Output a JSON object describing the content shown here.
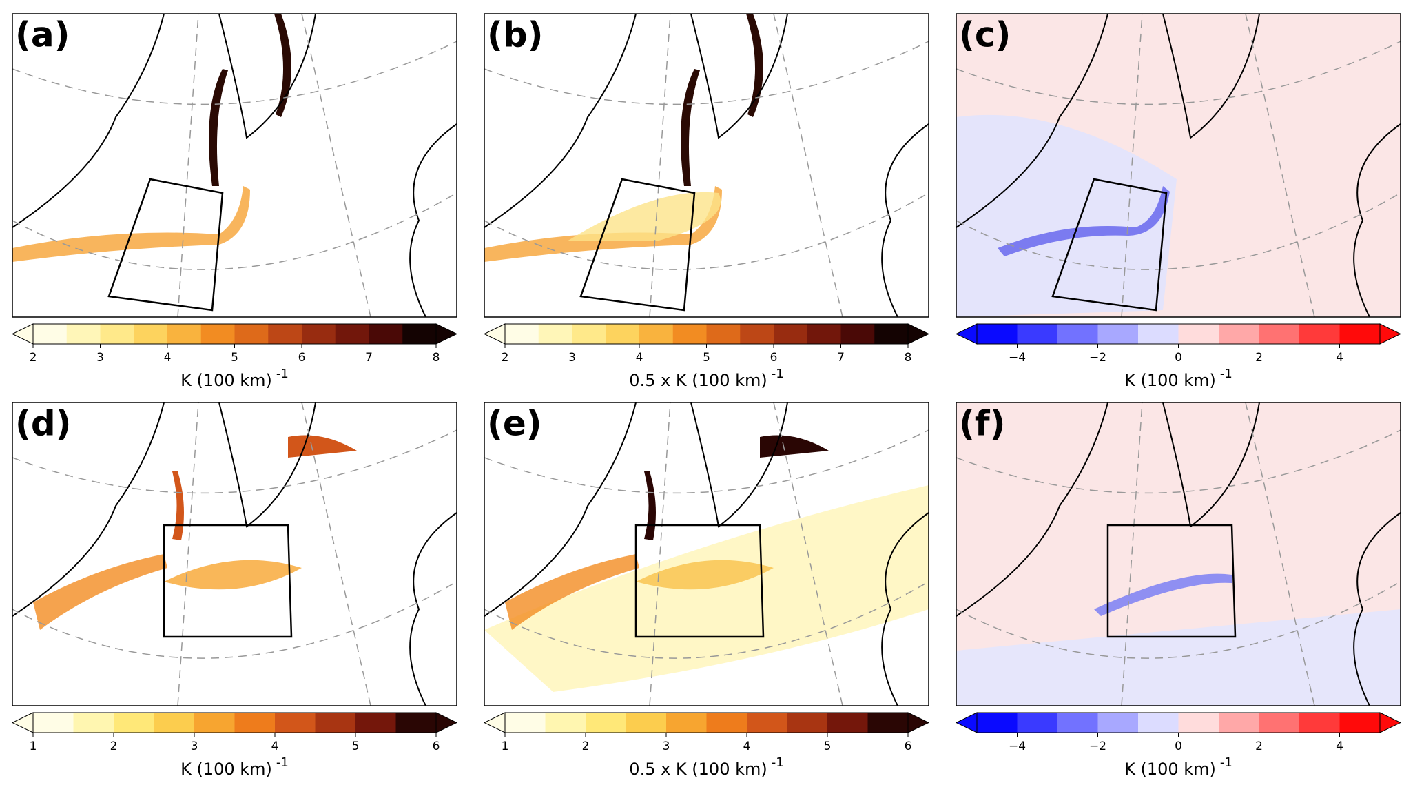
{
  "panels": [
    {
      "label": "(a)",
      "colorbar": {
        "lim": [
          2,
          8
        ],
        "ticks": [
          2,
          3,
          4,
          5,
          6,
          7,
          8
        ],
        "label": "K (100 km)",
        "exponent": "-1",
        "colors": [
          "#fffde6",
          "#fff6b8",
          "#ffe98a",
          "#fdd35e",
          "#f9b33e",
          "#f28c22",
          "#de6a1a",
          "#bd4716",
          "#982c10",
          "#72170b",
          "#4a0906",
          "#140302"
        ]
      }
    },
    {
      "label": "(b)",
      "colorbar": {
        "lim": [
          2,
          8
        ],
        "ticks": [
          2,
          3,
          4,
          5,
          6,
          7,
          8
        ],
        "label": "0.5 x K (100 km)",
        "exponent": "-1",
        "colors": [
          "#fffde6",
          "#fff6b8",
          "#ffe98a",
          "#fdd35e",
          "#f9b33e",
          "#f28c22",
          "#de6a1a",
          "#bd4716",
          "#982c10",
          "#72170b",
          "#4a0906",
          "#140302"
        ]
      }
    },
    {
      "label": "(c)",
      "colorbar": {
        "lim": [
          -5,
          5
        ],
        "ticks": [
          {
            "value": -4,
            "label": "−4"
          },
          {
            "value": -2,
            "label": "−2"
          },
          0,
          2,
          4
        ],
        "label": "K (100 km)",
        "exponent": "-1",
        "colors": [
          "#0a0aff",
          "#3a3aff",
          "#7272ff",
          "#a8a8ff",
          "#dcdcff",
          "#ffdcdc",
          "#ffa8a8",
          "#ff7272",
          "#ff3a3a",
          "#ff0a0a"
        ]
      }
    },
    {
      "label": "(d)",
      "colorbar": {
        "lim": [
          1,
          6
        ],
        "ticks": [
          1,
          2,
          3,
          4,
          5,
          6
        ],
        "label": "K (100 km)",
        "exponent": "-1",
        "colors": [
          "#fffde6",
          "#fff6b0",
          "#ffe878",
          "#fccd4e",
          "#f7a530",
          "#ee7c1c",
          "#d2561a",
          "#a83512",
          "#74170b",
          "#2a0604"
        ]
      }
    },
    {
      "label": "(e)",
      "colorbar": {
        "lim": [
          1,
          6
        ],
        "ticks": [
          1,
          2,
          3,
          4,
          5,
          6
        ],
        "label": "0.5 x K (100 km)",
        "exponent": "-1",
        "colors": [
          "#fffde6",
          "#fff6b0",
          "#ffe878",
          "#fccd4e",
          "#f7a530",
          "#ee7c1c",
          "#d2561a",
          "#a83512",
          "#74170b",
          "#2a0604"
        ]
      }
    },
    {
      "label": "(f)",
      "colorbar": {
        "lim": [
          -5,
          5
        ],
        "ticks": [
          {
            "value": -4,
            "label": "−4"
          },
          {
            "value": -2,
            "label": "−2"
          },
          0,
          2,
          4
        ],
        "label": "K (100 km)",
        "exponent": "-1",
        "colors": [
          "#0a0aff",
          "#3a3aff",
          "#7272ff",
          "#a8a8ff",
          "#dcdcff",
          "#ffdcdc",
          "#ffa8a8",
          "#ff7272",
          "#ff3a3a",
          "#ff0a0a"
        ]
      }
    }
  ]
}
